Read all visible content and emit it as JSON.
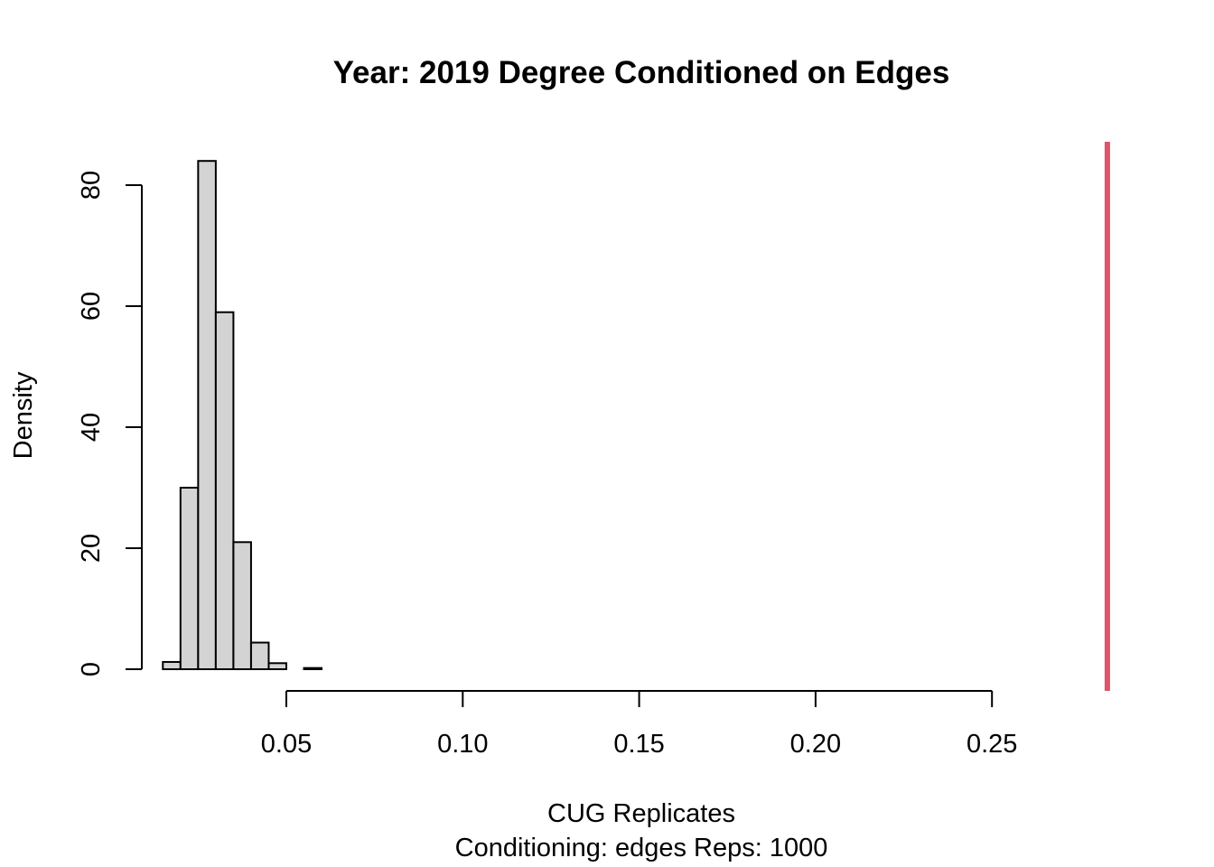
{
  "chart_data": {
    "type": "bar",
    "title": "Year: 2019  Degree Conditioned on Edges",
    "xlabel": "CUG Replicates",
    "subtitle": "Conditioning: edges Reps: 1000",
    "ylabel": "Density",
    "x_ticks": [
      "0.05",
      "0.10",
      "0.15",
      "0.20",
      "0.25"
    ],
    "x_tick_values": [
      0.05,
      0.1,
      0.15,
      0.2,
      0.25
    ],
    "y_ticks": [
      "0",
      "20",
      "40",
      "60",
      "80"
    ],
    "y_tick_values": [
      0,
      20,
      40,
      60,
      80
    ],
    "xlim": [
      0.009,
      0.28
    ],
    "ylim": [
      0,
      84
    ],
    "bins": [
      {
        "x0": 0.015,
        "x1": 0.02,
        "density": 1.2
      },
      {
        "x0": 0.02,
        "x1": 0.025,
        "density": 30
      },
      {
        "x0": 0.025,
        "x1": 0.03,
        "density": 84
      },
      {
        "x0": 0.03,
        "x1": 0.035,
        "density": 59
      },
      {
        "x0": 0.035,
        "x1": 0.04,
        "density": 21
      },
      {
        "x0": 0.04,
        "x1": 0.045,
        "density": 4.4
      },
      {
        "x0": 0.045,
        "x1": 0.05,
        "density": 1.0
      },
      {
        "x0": 0.05,
        "x1": 0.055,
        "density": 0
      },
      {
        "x0": 0.055,
        "x1": 0.06,
        "density": 0.2
      }
    ],
    "observed_line": {
      "x": 0.2827,
      "color": "#DF536B"
    },
    "bar_color": "#D3D3D3"
  }
}
